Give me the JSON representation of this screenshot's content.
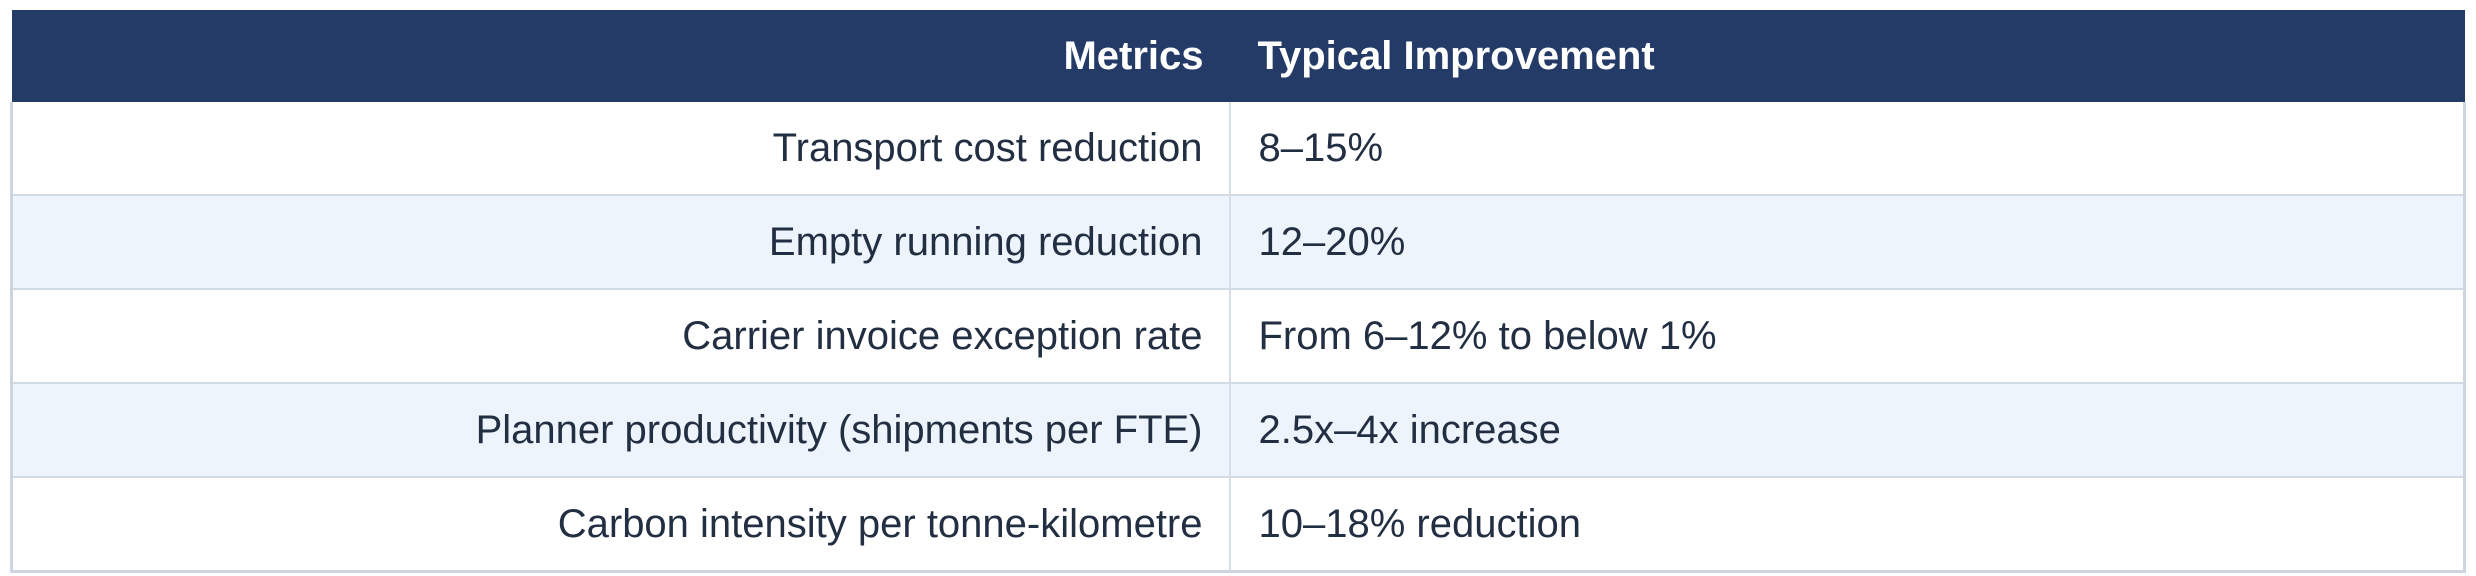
{
  "chart_data": {
    "type": "table",
    "title": "",
    "columns": [
      "Metrics",
      "Typical Improvement"
    ],
    "rows": [
      [
        "Transport cost reduction",
        "8–15%"
      ],
      [
        "Empty running reduction",
        "12–20%"
      ],
      [
        "Carrier invoice exception rate",
        "From 6–12% to below 1%"
      ],
      [
        "Planner productivity (shipments per FTE)",
        "2.5x–4x increase"
      ],
      [
        "Carbon intensity per tonne-kilometre",
        "10–18% reduction"
      ]
    ],
    "layout_hints": {
      "metric_column_align": "right",
      "improvement_column_align": "left",
      "alternating_row_shading": true
    }
  },
  "table": {
    "columns": [
      {
        "label": "Metrics"
      },
      {
        "label": "Typical Improvement"
      }
    ],
    "rows": [
      {
        "metric": "Transport cost reduction",
        "improvement": "8–15%"
      },
      {
        "metric": "Empty running reduction",
        "improvement": "12–20%"
      },
      {
        "metric": "Carrier invoice exception rate",
        "improvement": "From 6–12% to below 1%"
      },
      {
        "metric": "Planner productivity (shipments per FTE)",
        "improvement": "2.5x–4x increase"
      },
      {
        "metric": "Carbon intensity per tonne-kilometre",
        "improvement": "10–18% reduction"
      }
    ],
    "colors": {
      "header_background": "#243a67",
      "header_text": "#ffffff",
      "row_background": "#ffffff",
      "row_alt_background": "#eef4fc",
      "body_text": "#222e42",
      "border": "#ccd5e0"
    }
  }
}
